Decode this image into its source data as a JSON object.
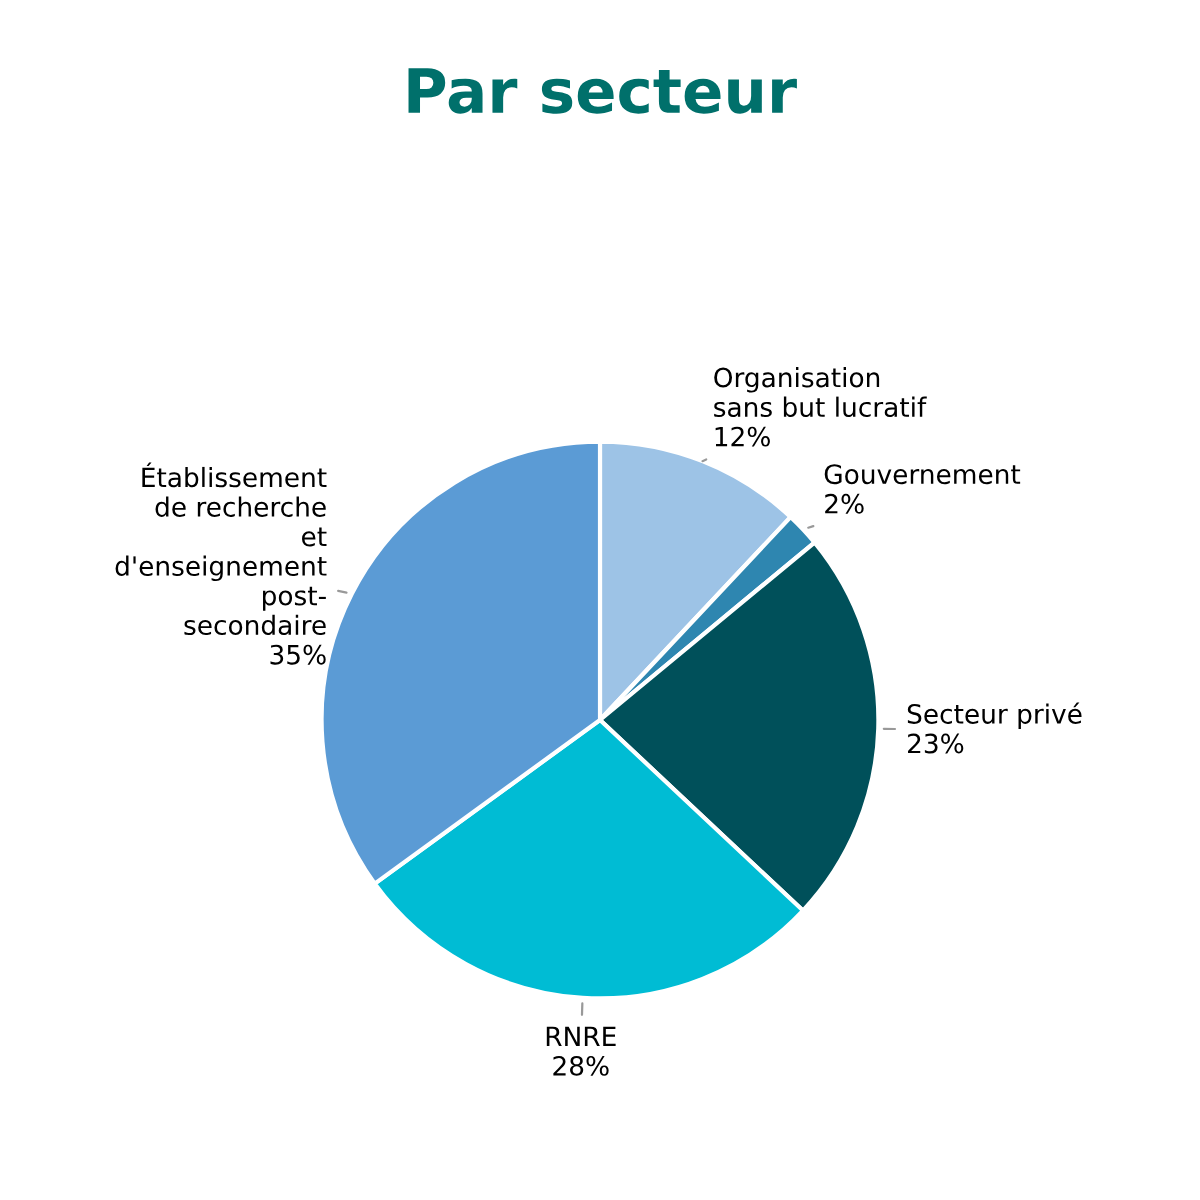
{
  "chart_data": {
    "type": "pie",
    "title": "Par secteur",
    "categories": [
      "Organisation\nsans but lucratif",
      "Gouvernement",
      "Secteur privé",
      "RNRE",
      "Établissement\nde recherche\net\nd'enseignement\npost-\nsecondaire"
    ],
    "values": [
      12,
      2,
      23,
      28,
      35
    ],
    "value_labels": [
      "12%",
      "2%",
      "23%",
      "28%",
      "35%"
    ],
    "colors": [
      "#9dc3e6",
      "#2e86b0",
      "#00505a",
      "#00bcd4",
      "#5b9bd5"
    ]
  }
}
